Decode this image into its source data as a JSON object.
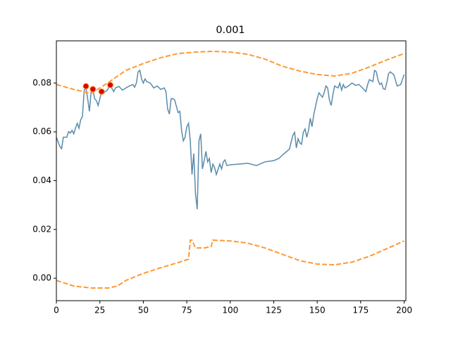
{
  "chart_data": {
    "type": "line",
    "title": "0.001",
    "xlim": [
      0,
      201
    ],
    "ylim": [
      -0.0092,
      0.0973
    ],
    "xticks": [
      0,
      25,
      50,
      75,
      100,
      125,
      150,
      175,
      200
    ],
    "yticks": [
      {
        "value": 0,
        "label": "0.00"
      },
      0.02,
      0.04,
      0.06,
      0.08
    ],
    "series": [
      {
        "type": "line",
        "color": "#5b8bab",
        "dashed": false,
        "x": [
          0,
          2,
          3,
          4,
          6,
          7,
          8,
          9,
          10,
          11,
          12,
          13,
          14,
          15,
          16,
          17,
          18,
          19,
          20,
          21,
          22,
          23,
          24,
          25,
          26,
          27,
          28,
          29,
          30,
          31,
          32,
          33,
          34,
          36,
          38,
          40,
          42,
          44,
          45,
          46,
          47,
          48,
          49,
          50,
          51,
          52,
          54,
          56,
          58,
          60,
          62,
          63,
          64,
          65,
          66,
          67,
          68,
          70,
          71,
          72,
          73,
          74,
          75,
          76,
          77,
          78,
          79,
          80,
          81,
          82,
          83,
          84,
          85,
          86,
          87,
          88,
          89,
          90,
          91,
          92,
          94,
          95,
          96,
          97,
          98,
          100,
          105,
          110,
          115,
          120,
          125,
          128,
          130,
          132,
          134,
          136,
          137,
          138,
          139,
          140,
          141,
          142,
          143,
          144,
          145,
          146,
          147,
          148,
          150,
          151,
          153,
          154,
          155,
          156,
          157,
          158,
          159,
          160,
          162,
          163,
          164,
          165,
          166,
          168,
          170,
          172,
          174,
          176,
          178,
          179,
          180,
          182,
          183,
          184,
          185,
          186,
          187,
          188,
          189,
          190,
          191,
          192,
          194,
          196,
          198,
          200
        ],
        "values": [
          0.0578,
          0.054,
          0.0531,
          0.0578,
          0.0578,
          0.0601,
          0.0595,
          0.0606,
          0.0592,
          0.0615,
          0.0635,
          0.0615,
          0.065,
          0.0664,
          0.0771,
          0.078,
          0.0736,
          0.0684,
          0.0765,
          0.0774,
          0.0736,
          0.0728,
          0.0708,
          0.0736,
          0.0765,
          0.0757,
          0.0765,
          0.0768,
          0.078,
          0.0791,
          0.0777,
          0.0765,
          0.078,
          0.0786,
          0.0771,
          0.078,
          0.0788,
          0.0794,
          0.0783,
          0.08,
          0.0846,
          0.0852,
          0.0817,
          0.08,
          0.0817,
          0.0806,
          0.08,
          0.078,
          0.0788,
          0.0774,
          0.078,
          0.0765,
          0.0693,
          0.0673,
          0.0736,
          0.0736,
          0.0731,
          0.0679,
          0.0684,
          0.0606,
          0.0563,
          0.0578,
          0.0621,
          0.0635,
          0.0563,
          0.0425,
          0.0511,
          0.0347,
          0.0283,
          0.0563,
          0.0592,
          0.0448,
          0.0482,
          0.052,
          0.0477,
          0.0491,
          0.0433,
          0.0468,
          0.0453,
          0.0425,
          0.0468,
          0.0448,
          0.0477,
          0.0485,
          0.0462,
          0.0465,
          0.0468,
          0.0471,
          0.0462,
          0.0477,
          0.0482,
          0.0491,
          0.0505,
          0.0517,
          0.0529,
          0.0586,
          0.0598,
          0.0534,
          0.0572,
          0.0555,
          0.0549,
          0.0598,
          0.0612,
          0.0578,
          0.0606,
          0.0656,
          0.0621,
          0.067,
          0.0736,
          0.076,
          0.0742,
          0.076,
          0.0788,
          0.078,
          0.0731,
          0.0708,
          0.0751,
          0.0788,
          0.078,
          0.08,
          0.0771,
          0.0794,
          0.078,
          0.0788,
          0.08,
          0.0791,
          0.0794,
          0.078,
          0.0765,
          0.0794,
          0.0814,
          0.0806,
          0.0852,
          0.0846,
          0.0811,
          0.0794,
          0.08,
          0.0777,
          0.0774,
          0.08,
          0.0838,
          0.0846,
          0.0835,
          0.0788,
          0.0794,
          0.0835
        ]
      },
      {
        "type": "line",
        "color": "#ff9933",
        "dashed": true,
        "x": [
          0,
          10,
          20,
          30,
          40,
          50,
          60,
          70,
          80,
          90,
          100,
          110,
          120,
          130,
          140,
          150,
          160,
          170,
          180,
          190,
          200
        ],
        "values": [
          0.0794,
          0.0774,
          0.0757,
          0.0803,
          0.0852,
          0.088,
          0.0904,
          0.0921,
          0.0927,
          0.093,
          0.0927,
          0.0918,
          0.0898,
          0.0869,
          0.0849,
          0.0835,
          0.0829,
          0.084,
          0.0866,
          0.0895,
          0.0921
        ]
      },
      {
        "type": "line",
        "color": "#ff9933",
        "dashed": true,
        "x": [
          0,
          10,
          20,
          30,
          35,
          40,
          50,
          60,
          70,
          76,
          77,
          78,
          80,
          85,
          89,
          90,
          100,
          110,
          120,
          130,
          140,
          150,
          160,
          170,
          180,
          190,
          200
        ],
        "values": [
          -0.0009,
          -0.0032,
          -0.004,
          -0.004,
          -0.0032,
          -0.0009,
          0.002,
          0.0043,
          0.0064,
          0.0078,
          0.0156,
          0.0156,
          0.0124,
          0.0124,
          0.013,
          0.0156,
          0.0153,
          0.0144,
          0.0124,
          0.0098,
          0.0072,
          0.0058,
          0.0055,
          0.0066,
          0.009,
          0.0121,
          0.0153
        ]
      },
      {
        "type": "scatter",
        "color": "#dd0000",
        "edgecolor": "#ff9933",
        "x": [
          17,
          21,
          26,
          31
        ],
        "values": [
          0.0787,
          0.0775,
          0.0765,
          0.0792
        ]
      }
    ]
  }
}
